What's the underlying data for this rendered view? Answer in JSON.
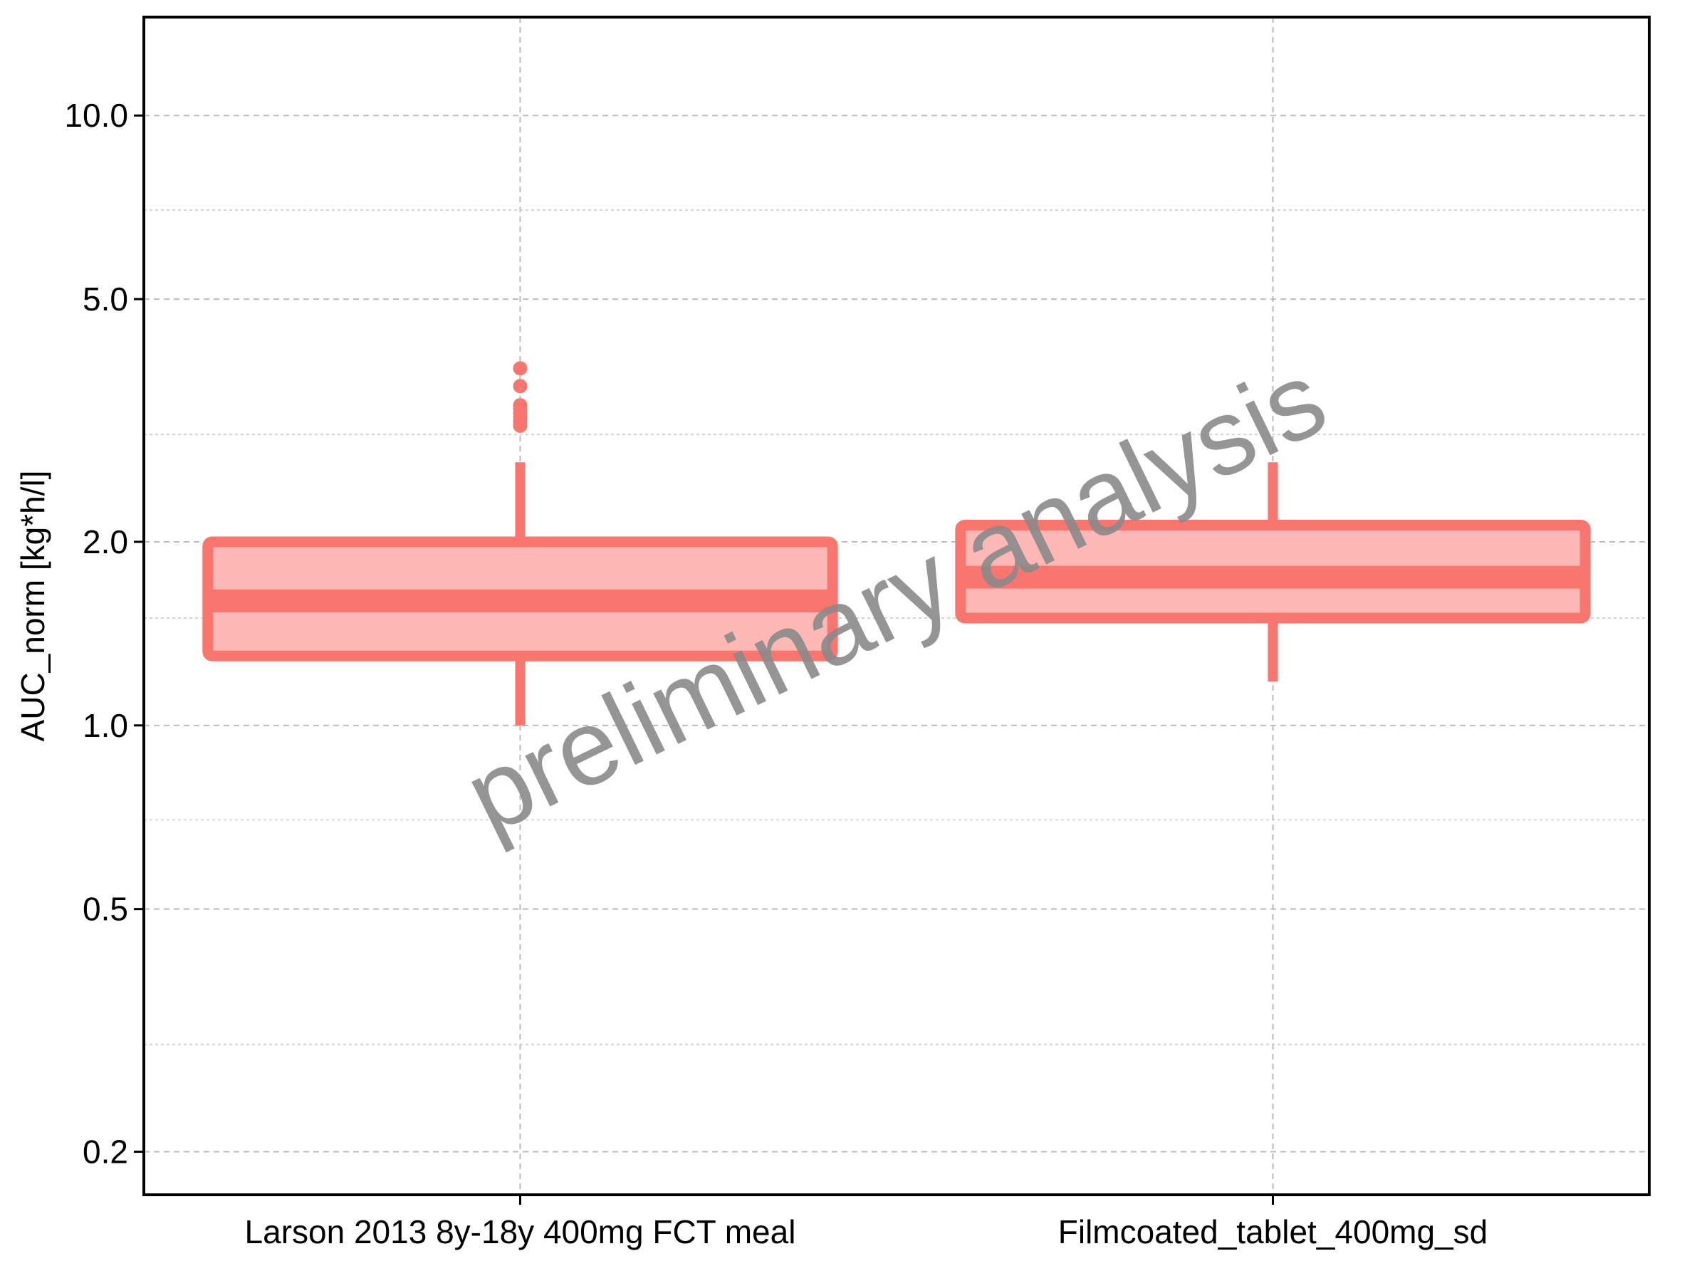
{
  "chart_data": {
    "type": "boxplot",
    "ylabel": "AUC_norm [kg*h/l]",
    "yscale": "log",
    "ylim": [
      0.17,
      14.5
    ],
    "yticks": [
      {
        "value": 0.2,
        "label": "0.2"
      },
      {
        "value": 0.5,
        "label": "0.5"
      },
      {
        "value": 1.0,
        "label": "1.0"
      },
      {
        "value": 2.0,
        "label": "2.0"
      },
      {
        "value": 5.0,
        "label": "5.0"
      },
      {
        "value": 10.0,
        "label": "10.0"
      }
    ],
    "yminor": [
      0.3,
      0.7,
      1.5,
      3.0,
      7.0
    ],
    "grid": true,
    "categories": [
      "Larson 2013 8y-18y 400mg FCT meal",
      "Filmcoated_tablet_400mg_sd"
    ],
    "series": [
      {
        "boxes": [
          {
            "category": "Larson 2013 8y-18y 400mg FCT meal",
            "whisker_low": 1.0,
            "q1": 1.3,
            "median": 1.6,
            "q3": 2.0,
            "whisker_high": 2.7,
            "outliers": [
              3.1,
              3.15,
              3.2,
              3.25,
              3.3,
              3.35,
              3.6,
              3.85
            ]
          },
          {
            "category": "Filmcoated_tablet_400mg_sd",
            "whisker_low": 1.18,
            "q1": 1.5,
            "median": 1.75,
            "q3": 2.13,
            "whisker_high": 2.7,
            "outliers": []
          }
        ]
      }
    ],
    "colors": {
      "stroke": "#F8766D",
      "fill": "#FBB8B4"
    },
    "watermark": "preliminary analysis"
  }
}
